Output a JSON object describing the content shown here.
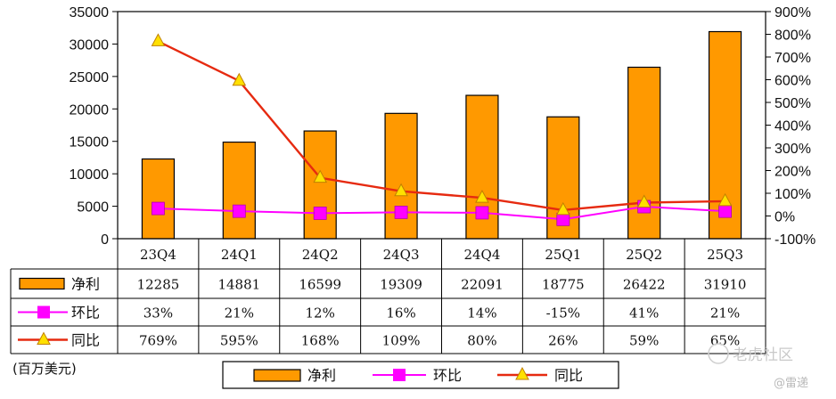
{
  "chart_data": {
    "type": "bar",
    "categories": [
      "23Q4",
      "24Q1",
      "24Q2",
      "24Q3",
      "24Q4",
      "25Q1",
      "25Q2",
      "25Q3"
    ],
    "series": [
      {
        "name": "净利",
        "type": "bar",
        "axis": "left",
        "values": [
          12285,
          14881,
          16599,
          19309,
          22091,
          18775,
          26422,
          31910
        ],
        "labels": [
          "12285",
          "14881",
          "16599",
          "19309",
          "22091",
          "18775",
          "26422",
          "31910"
        ]
      },
      {
        "name": "环比",
        "type": "line",
        "axis": "right",
        "values": [
          33,
          21,
          12,
          16,
          14,
          -15,
          41,
          21
        ],
        "labels": [
          "33%",
          "21%",
          "12%",
          "16%",
          "14%",
          "-15%",
          "41%",
          "21%"
        ]
      },
      {
        "name": "同比",
        "type": "line",
        "axis": "right",
        "values": [
          769,
          595,
          168,
          109,
          80,
          26,
          59,
          65
        ],
        "labels": [
          "769%",
          "595%",
          "168%",
          "109%",
          "80%",
          "26%",
          "59%",
          "65%"
        ]
      }
    ],
    "y_left": {
      "min": 0,
      "max": 35000,
      "step": 5000,
      "ticks": [
        "0",
        "5000",
        "10000",
        "15000",
        "20000",
        "25000",
        "30000",
        "35000"
      ]
    },
    "y_right": {
      "min": -100,
      "max": 900,
      "step": 100,
      "ticks": [
        "-100%",
        "0%",
        "100%",
        "200%",
        "300%",
        "400%",
        "500%",
        "600%",
        "700%",
        "800%",
        "900%"
      ]
    },
    "unit_label": "(百万美元)",
    "grid": false,
    "legend": "bottom",
    "data_table": true,
    "colors": {
      "bar": "#FF9900",
      "bar_edge": "#000000",
      "qoq": "#FF00FF",
      "yoy_line": "#E62A10",
      "yoy_marker": "#FFE000"
    }
  },
  "watermark": {
    "main": "老虎社区",
    "sub": "@雷递"
  }
}
